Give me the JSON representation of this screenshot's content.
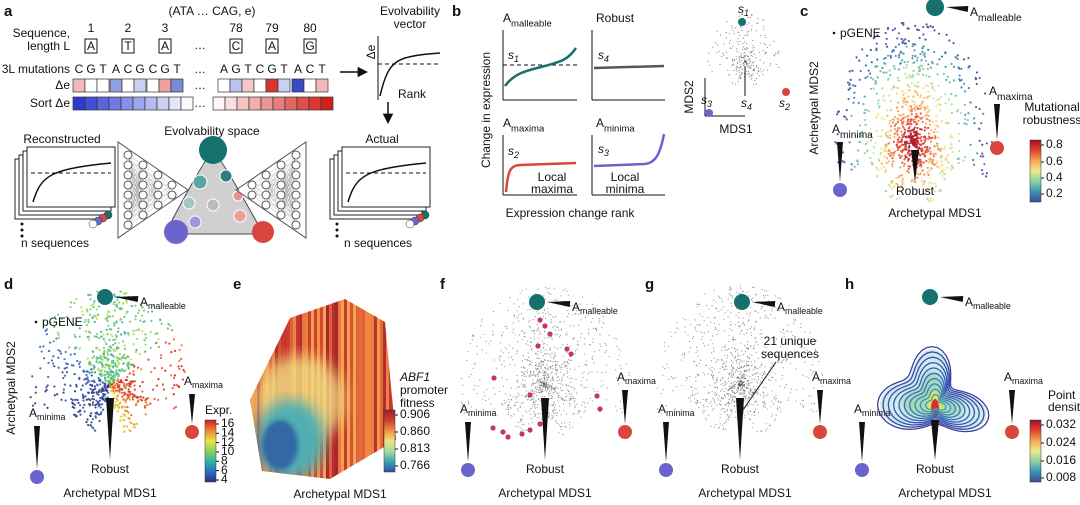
{
  "panel_labels": [
    "a",
    "b",
    "c",
    "d",
    "e",
    "f",
    "g",
    "h"
  ],
  "archetypes": {
    "letter": "A",
    "malleable": "malleable",
    "maxima": "maxima",
    "minima": "minima",
    "robust": "Robust"
  },
  "axes": {
    "mds1": "Archetypal MDS1",
    "mds2": "Archetypal MDS2"
  },
  "pgene": "pGENE",
  "s_label": {
    "letter": "s",
    "subs": [
      "1",
      "2",
      "3",
      "4"
    ]
  },
  "a": {
    "sequence_tuple": "(ATA … CAG, e)",
    "sequence_label": [
      "Sequence,",
      "length L"
    ],
    "positions": [
      "1",
      "2",
      "3",
      "78",
      "79",
      "80"
    ],
    "bases": [
      "A",
      "T",
      "A",
      "C",
      "A",
      "G"
    ],
    "mutations_label": "3L mutations",
    "mutations": [
      [
        "C",
        "G",
        "T"
      ],
      [
        "A",
        "C",
        "G"
      ],
      [
        "C",
        "G",
        "T"
      ],
      [
        "A",
        "G",
        "T"
      ],
      [
        "C",
        "G",
        "T"
      ],
      [
        "A",
        "C",
        "T"
      ]
    ],
    "ellipsis": "…",
    "delta_e": "Δe",
    "sort_delta_e": "Sort Δe",
    "evolvability_vector": [
      "Evolvability",
      "vector"
    ],
    "rank": "Rank",
    "reconstructed": "Reconstructed",
    "actual": "Actual",
    "evolvability_space": "Evolvability space",
    "n_sequences": "n sequences"
  },
  "b": {
    "change": "Change in expression",
    "rank": "Expression change rank",
    "local_maxima": [
      "Local",
      "maxima"
    ],
    "local_minima": [
      "Local",
      "minima"
    ],
    "mds1": "MDS1",
    "mds2": "MDS2"
  },
  "c": {
    "colorbar_title": [
      "Mutational",
      "robustness"
    ],
    "colorbar_ticks": [
      "0.8",
      "0.6",
      "0.4",
      "0.2"
    ]
  },
  "d": {
    "colorbar_title": "Expr.",
    "colorbar_ticks": [
      "16",
      "14",
      "12",
      "10",
      "8",
      "6",
      "4"
    ]
  },
  "e": {
    "colorbar_title": [
      "ABF1",
      "promoter",
      "fitness"
    ],
    "colorbar_ticks": [
      "0.906",
      "0.860",
      "0.813",
      "0.766"
    ]
  },
  "g": {
    "annotation": [
      "21 unique",
      "sequences"
    ]
  },
  "h": {
    "colorbar_title": [
      "Point",
      "density"
    ],
    "colorbar_ticks": [
      "0.032",
      "0.024",
      "0.016",
      "0.008"
    ]
  }
}
